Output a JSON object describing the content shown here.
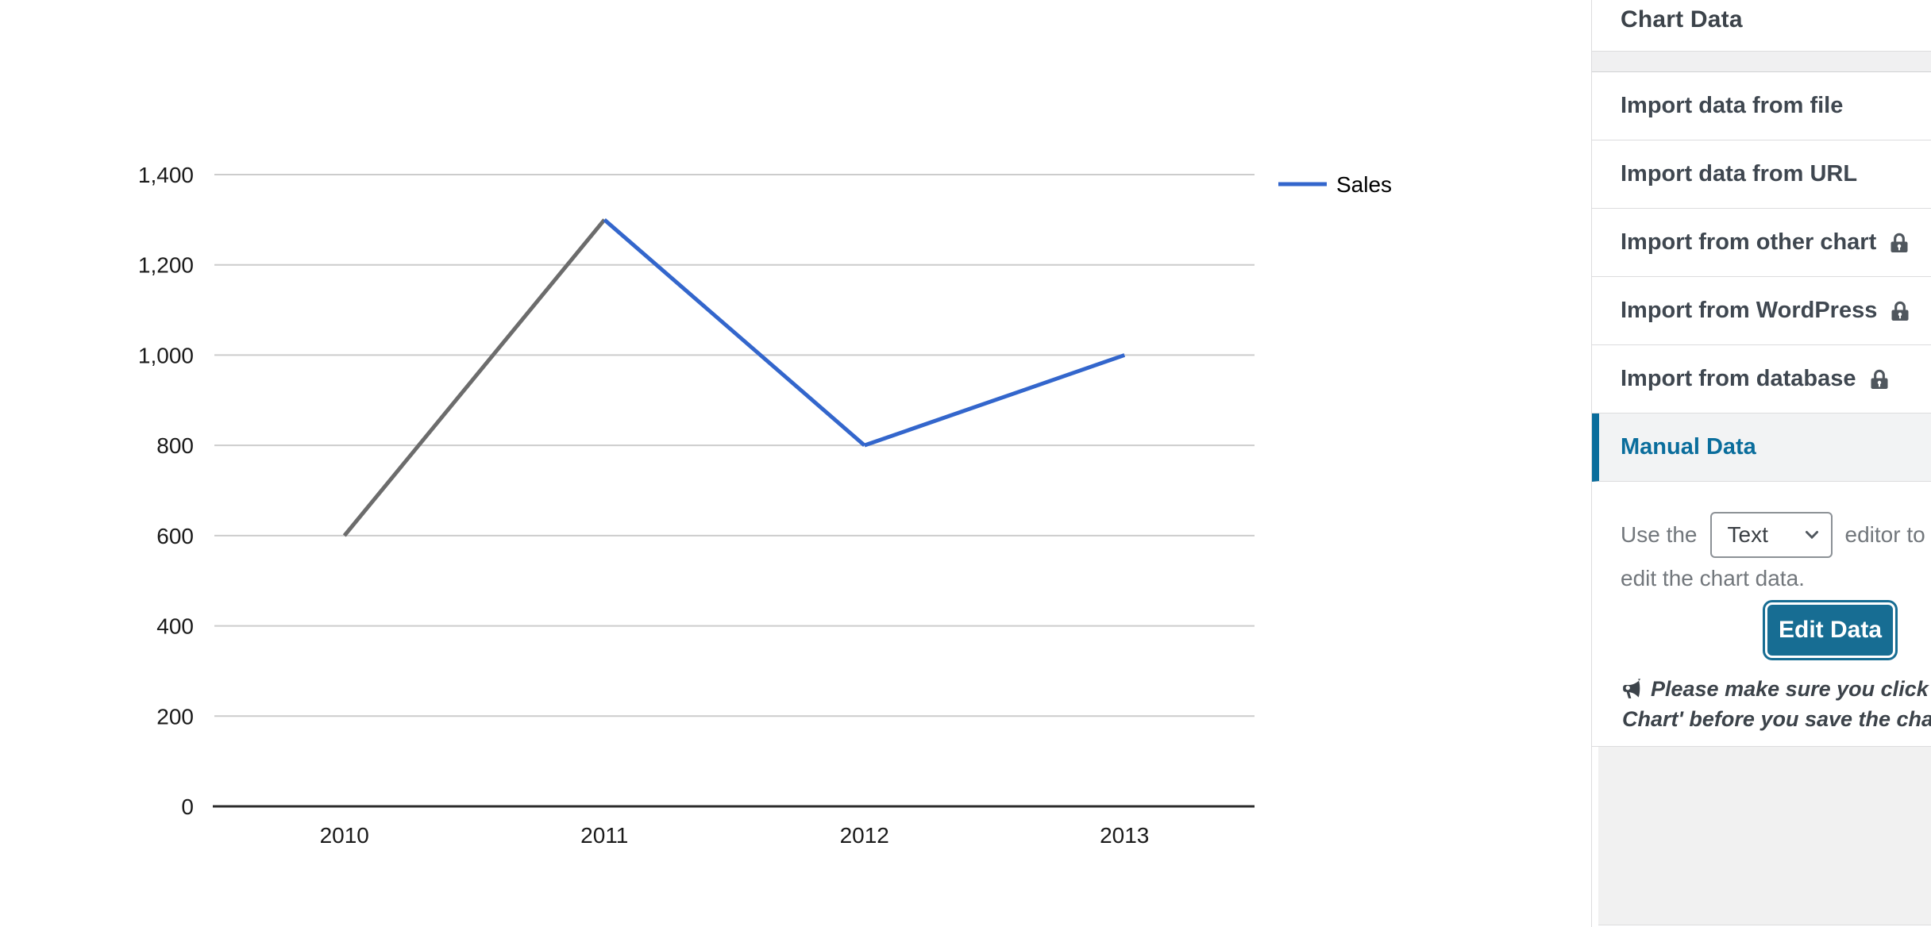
{
  "chart_data": {
    "type": "line",
    "title": "",
    "categories": [
      "2010",
      "2011",
      "2012",
      "2013"
    ],
    "series": [
      {
        "name": "Sales",
        "values": [
          600,
          1300,
          800,
          1000
        ]
      }
    ],
    "segment_colors": [
      "#6c6c6c",
      "#3366cc",
      "#3366cc"
    ],
    "series_color": "#3366cc",
    "xlabel": "",
    "ylabel": "",
    "ylim": [
      0,
      1400
    ],
    "ytick_step": 200,
    "ytick_labels": [
      "0",
      "200",
      "400",
      "600",
      "800",
      "1,000",
      "1,200",
      "1,400"
    ],
    "grid": true,
    "gridline_color": "#cccccc",
    "baseline_color": "#2b2b2b",
    "axis_text_color": "#1a1a1a",
    "legend": {
      "position": "right",
      "label": "Sales"
    }
  },
  "sidebar": {
    "title": "Chart Data",
    "menu_items": [
      {
        "label": "Import data from file",
        "locked": false,
        "active": false
      },
      {
        "label": "Import data from URL",
        "locked": false,
        "active": false
      },
      {
        "label": "Import from other chart",
        "locked": true,
        "active": false
      },
      {
        "label": "Import from WordPress",
        "locked": true,
        "active": false
      },
      {
        "label": "Import from database",
        "locked": true,
        "active": false
      },
      {
        "label": "Manual Data",
        "locked": false,
        "active": true
      }
    ],
    "manual_panel": {
      "before_select": "Use the",
      "editor_select_value": "Text",
      "after_select": "editor to manually",
      "line2": "edit the chart data.",
      "edit_button_label": "Edit Data",
      "note_lines": [
        "Please make sure you click 'Show",
        "Chart' before you save the chart."
      ]
    },
    "colors": {
      "accent": "#0a6d9c",
      "button": "#176d93"
    }
  }
}
